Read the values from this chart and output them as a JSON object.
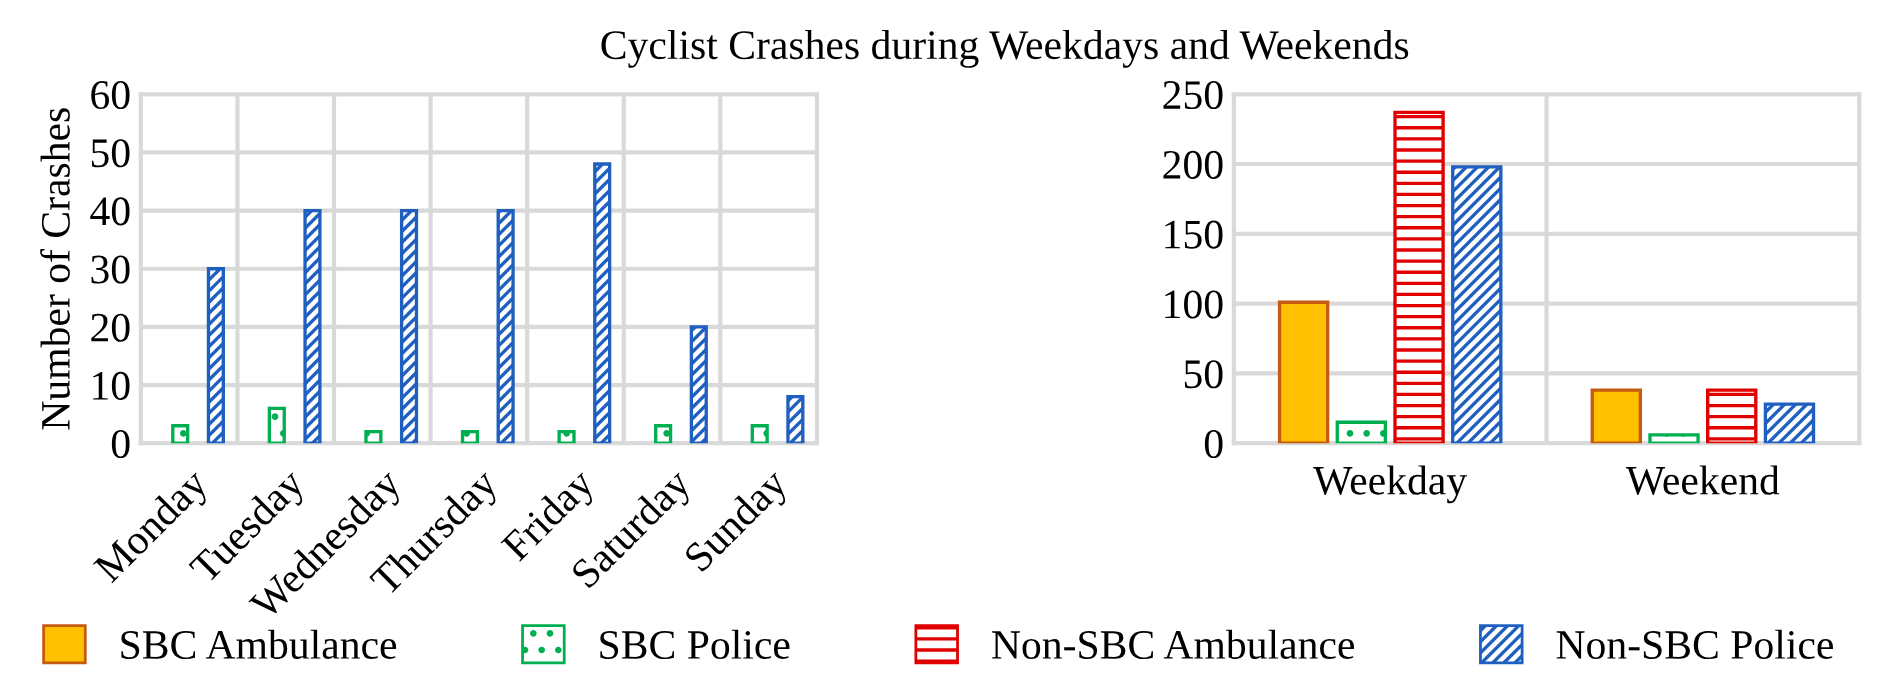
{
  "chart_data": [
    {
      "type": "bar",
      "title": "Cyclist Crashes during Weekdays and Weekends",
      "ylabel": "Number of Crashes",
      "categories": [
        "Monday",
        "Tuesday",
        "Wednesday",
        "Thursday",
        "Friday",
        "Saturday",
        "Sunday"
      ],
      "series": [
        {
          "color": "#ffc000",
          "values": [
            null,
            null,
            null,
            null,
            null,
            null,
            null
          ]
        },
        {
          "color": "#00b050",
          "values": [
            3,
            6,
            2,
            2,
            2,
            3,
            3
          ]
        },
        {
          "color": "#e00000",
          "values": [
            null,
            null,
            null,
            null,
            null,
            null,
            null
          ]
        },
        {
          "color": "#1f5fbf",
          "values": [
            30,
            40,
            40,
            40,
            48,
            20,
            8
          ]
        }
      ],
      "ylim": [
        0,
        60
      ],
      "yticks": [
        0,
        10,
        20,
        30,
        40,
        50,
        60
      ],
      "grid": true
    },
    {
      "type": "bar",
      "categories": [
        "Weekday",
        "Weekend"
      ],
      "series": [
        {
          "name": "SBC Ambulance",
          "color": "#ffc000",
          "values": [
            101,
            38
          ]
        },
        {
          "name": "SBC Police",
          "color": "#00b050",
          "values": [
            15,
            6
          ]
        },
        {
          "name": "Non-SBC Ambulance",
          "color": "#e00000",
          "values": [
            237,
            38
          ]
        },
        {
          "name": "Non-SBC Police",
          "color": "#1f5fbf",
          "values": [
            198,
            28
          ]
        }
      ],
      "ylim": [
        0,
        250
      ],
      "yticks": [
        0,
        50,
        100,
        150,
        200,
        250
      ],
      "grid": true,
      "legend": "bottom"
    }
  ]
}
